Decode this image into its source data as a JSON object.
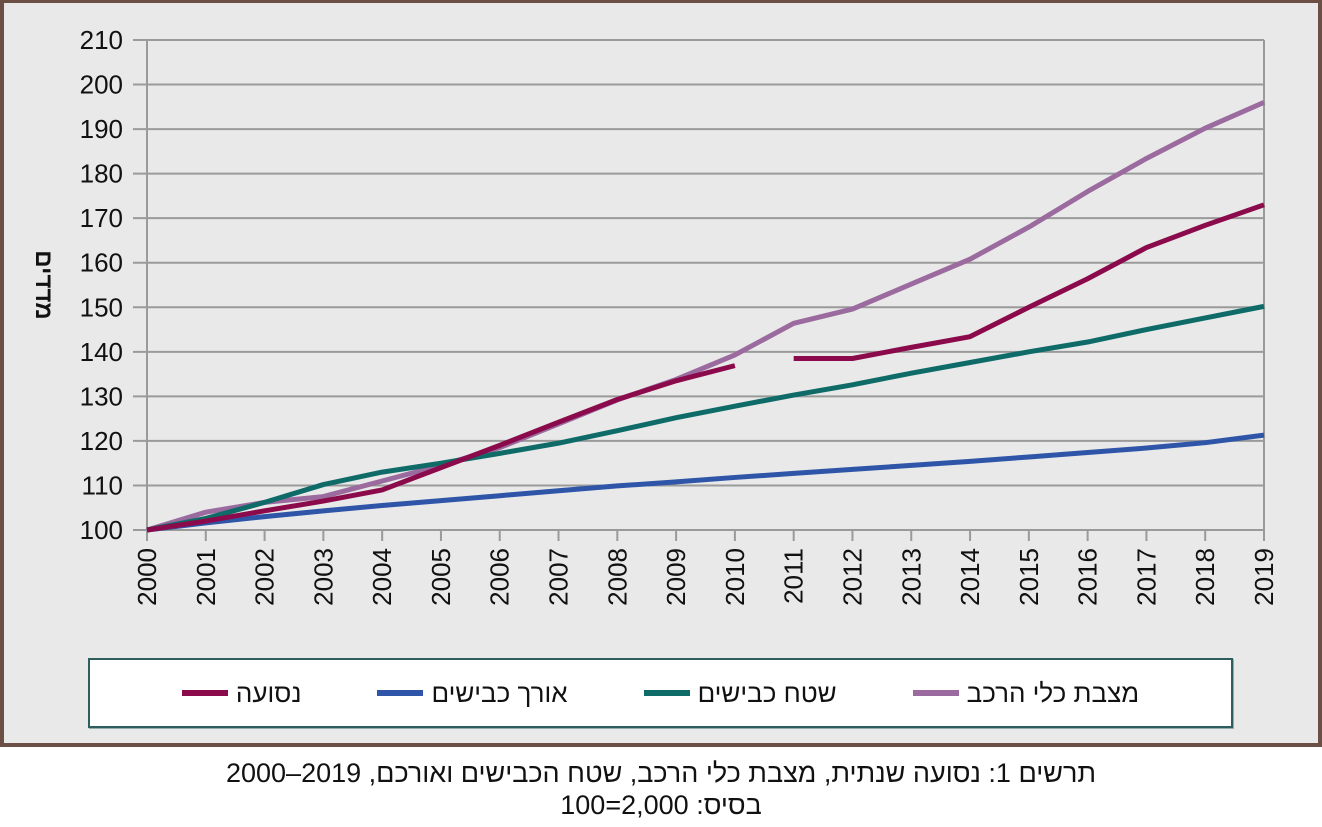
{
  "chart_data": {
    "type": "line",
    "title": "",
    "xlabel": "",
    "ylabel": "מדדים",
    "x": [
      2000,
      2001,
      2002,
      2003,
      2004,
      2005,
      2006,
      2007,
      2008,
      2009,
      2010,
      2011,
      2012,
      2013,
      2014,
      2015,
      2016,
      2017,
      2018,
      2019
    ],
    "x_tick_labels": [
      "2000",
      "2001",
      "2002",
      "2003",
      "2004",
      "2005",
      "2006",
      "2007",
      "2008",
      "2009",
      "2010",
      "2011",
      "2012",
      "2013",
      "2014",
      "2015",
      "2016",
      "2017",
      "2018",
      "2019"
    ],
    "ylim": [
      100,
      210
    ],
    "y_ticks": [
      100,
      110,
      120,
      130,
      140,
      150,
      160,
      170,
      180,
      190,
      200,
      210
    ],
    "y_tick_labels": [
      "100",
      "110",
      "120",
      "130",
      "140",
      "150",
      "160",
      "170",
      "180",
      "190",
      "200",
      "210"
    ],
    "grid": "horizontal",
    "legend_position": "bottom",
    "series": [
      {
        "name": "מצבת כלי הרכב",
        "color": "#9b6a9e",
        "values": [
          100,
          104,
          106.2,
          107.5,
          111,
          114.5,
          118.5,
          123.8,
          129.2,
          133.8,
          139.3,
          146.4,
          149.6,
          155.2,
          160.8,
          168,
          176,
          183.4,
          190.2,
          196
        ]
      },
      {
        "name": "שטח כבישים",
        "color": "#0e6b68",
        "values": [
          100,
          102.6,
          106.2,
          110.2,
          113,
          115,
          117.2,
          119.5,
          122.3,
          125.2,
          127.8,
          130.3,
          132.6,
          135.2,
          137.6,
          140,
          142.2,
          145,
          147.6,
          150.2
        ]
      },
      {
        "name": "אורך כבישים",
        "color": "#2f55a8",
        "values": [
          100,
          101.6,
          103,
          104.3,
          105.5,
          106.6,
          107.7,
          108.8,
          109.9,
          110.8,
          111.8,
          112.7,
          113.6,
          114.5,
          115.4,
          116.4,
          117.4,
          118.4,
          119.6,
          121.3
        ]
      },
      {
        "name": "נסועה",
        "color": "#8b0a4b",
        "values": [
          100,
          102,
          104.3,
          106.5,
          109,
          114,
          119,
          124.2,
          129.3,
          133.5,
          136.9,
          138.5,
          138.5,
          141,
          143.4,
          150,
          156.4,
          163.4,
          168.4,
          173
        ],
        "gap_between": [
          2010,
          2011
        ]
      }
    ],
    "legend_order_rtl": [
      "מצבת כלי הרכב",
      "שטח כבישים",
      "אורך כבישים",
      "נסועה"
    ]
  },
  "caption": {
    "line1": "תרשים 1: נסועה שנתית, מצבת כלי הרכב, שטח הכבישים ואורכם, 2019–2000",
    "line2": "בסיס: 2,000=100"
  },
  "colors": {
    "frame": "#6b4e44",
    "panel_background": "#e8e9e8",
    "gridline": "#9a9a9a",
    "legend_border": "#2f5e5f"
  }
}
